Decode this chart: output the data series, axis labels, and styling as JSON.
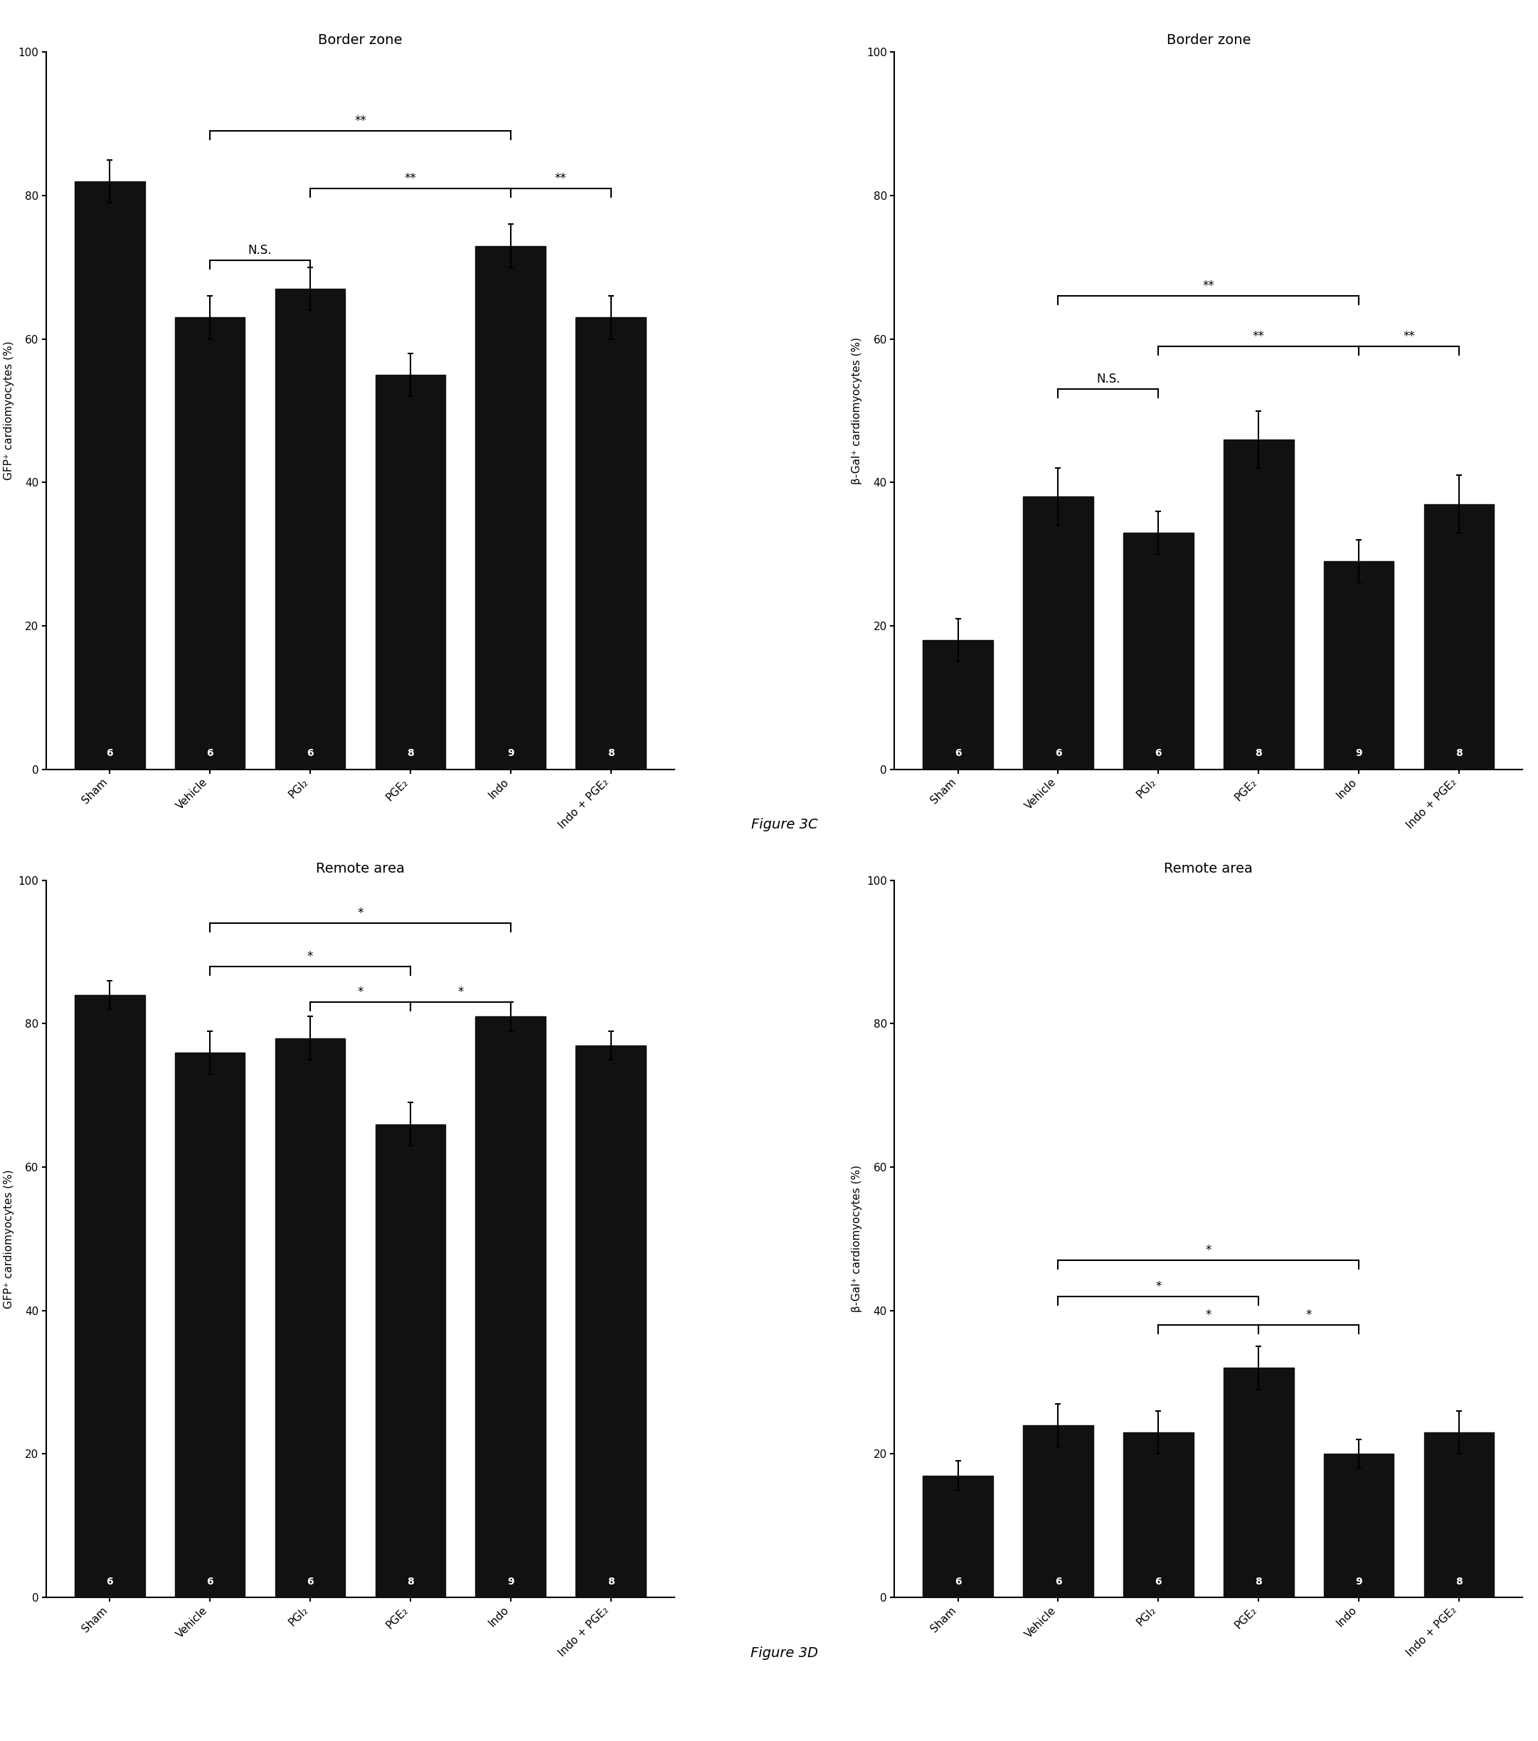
{
  "figure_label_C": "Figure 3C",
  "figure_label_D": "Figure 3D",
  "categories": [
    "Sham",
    "Vehicle",
    "PGI₂",
    "PGE₂",
    "Indo",
    "Indo + PGE₂"
  ],
  "n_labels": [
    6,
    6,
    6,
    8,
    9,
    8
  ],
  "panel_C_left": {
    "title": "Border zone",
    "ylabel": "GFP⁺ cardiomyocytes (%)",
    "values": [
      82,
      63,
      67,
      55,
      73,
      63
    ],
    "errors": [
      3,
      3,
      3,
      3,
      3,
      3
    ],
    "ylim": [
      0,
      100
    ],
    "yticks": [
      0,
      20,
      40,
      60,
      80,
      100
    ]
  },
  "panel_C_right": {
    "title": "Border zone",
    "ylabel": "β-Gal⁺ cardiomyocytes (%)",
    "values": [
      18,
      38,
      33,
      46,
      29,
      37
    ],
    "errors": [
      3,
      4,
      3,
      4,
      3,
      4
    ],
    "ylim": [
      0,
      100
    ],
    "yticks": [
      0,
      20,
      40,
      60,
      80,
      100
    ]
  },
  "panel_D_left": {
    "title": "Remote area",
    "ylabel": "GFP⁺ cardiomyocytes (%)",
    "values": [
      84,
      76,
      78,
      66,
      81,
      77
    ],
    "errors": [
      2,
      3,
      3,
      3,
      2,
      2
    ],
    "ylim": [
      0,
      100
    ],
    "yticks": [
      0,
      20,
      40,
      60,
      80,
      100
    ]
  },
  "panel_D_right": {
    "title": "Remote area",
    "ylabel": "β-Gal⁺ cardiomyocytes (%)",
    "values": [
      17,
      24,
      23,
      32,
      20,
      23
    ],
    "errors": [
      2,
      3,
      3,
      3,
      2,
      3
    ],
    "ylim": [
      0,
      100
    ],
    "yticks": [
      0,
      20,
      40,
      60,
      80,
      100
    ]
  },
  "bar_color": "#111111",
  "bar_width": 0.7,
  "n_label_fontsize": 10,
  "tick_fontsize": 11,
  "ylabel_fontsize": 11,
  "title_fontsize": 14,
  "sig_fontsize": 12,
  "n_label_color": "white",
  "fig_label_fontsize": 14
}
